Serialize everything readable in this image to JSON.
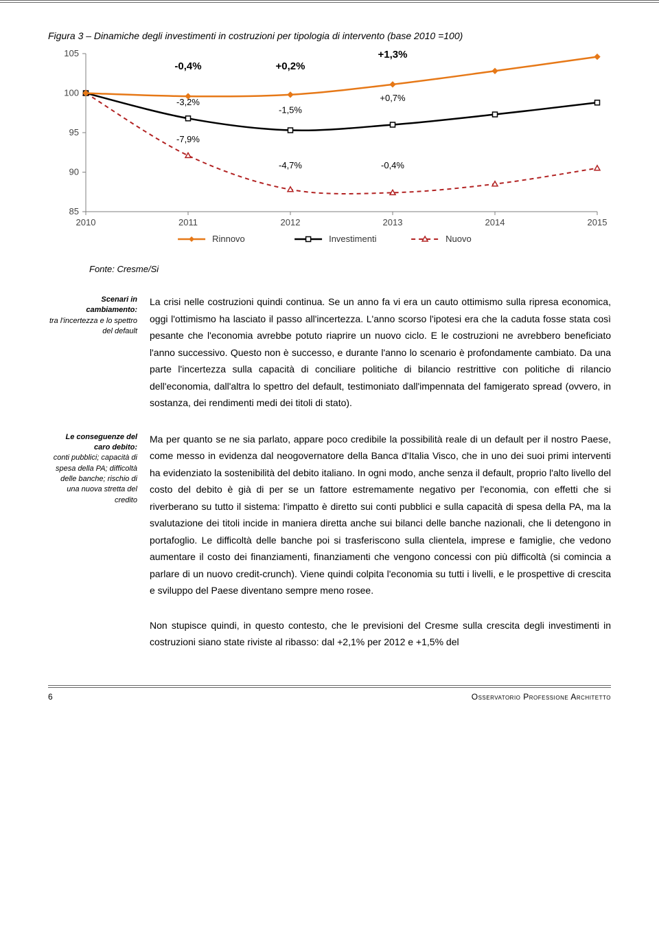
{
  "chart": {
    "title": "Figura 3 – Dinamiche degli investimenti in costruzioni per tipologia di intervento (base 2010 =100)",
    "x_labels": [
      "2010",
      "2011",
      "2012",
      "2013",
      "2014",
      "2015"
    ],
    "ylim": [
      85,
      105
    ],
    "ytick_step": 5,
    "y_labels": [
      "85",
      "90",
      "95",
      "100",
      "105"
    ],
    "series": {
      "rinnovo": {
        "label": "Rinnovo",
        "color": "#e67817",
        "marker": "diamond",
        "width": 2.5,
        "values": [
          100,
          99.6,
          99.8,
          101.1,
          102.8,
          104.6
        ]
      },
      "investimenti": {
        "label": "Investimenti",
        "color": "#000000",
        "marker": "square",
        "width": 2.5,
        "values": [
          100,
          96.8,
          95.3,
          96.0,
          97.3,
          98.8
        ]
      },
      "nuovo": {
        "label": "Nuovo",
        "color": "#b22222",
        "marker": "triangle",
        "width": 2,
        "dash": "6,5",
        "values": [
          100,
          92.1,
          87.8,
          87.4,
          88.5,
          90.5
        ]
      }
    },
    "annotations": [
      {
        "text": "-0,4%",
        "x": 1,
        "y_off": 103,
        "series": "top",
        "bold": true
      },
      {
        "text": "+0,2%",
        "x": 2,
        "y_off": 103,
        "series": "top",
        "bold": true
      },
      {
        "text": "+1,3%",
        "x": 3,
        "y_off": 104.5,
        "series": "top",
        "bold": true
      },
      {
        "text": "-3,2%",
        "x": 1,
        "y_off": 98.5,
        "series": "mid",
        "bold": false
      },
      {
        "text": "-1,5%",
        "x": 2,
        "y_off": 97.5,
        "series": "mid",
        "bold": false
      },
      {
        "text": "+0,7%",
        "x": 3,
        "y_off": 99,
        "series": "mid",
        "bold": false
      },
      {
        "text": "-7,9%",
        "x": 1,
        "y_off": 93.8,
        "series": "low",
        "bold": false
      },
      {
        "text": "-4,7%",
        "x": 2,
        "y_off": 90.5,
        "series": "low",
        "bold": false
      },
      {
        "text": "-0,4%",
        "x": 3,
        "y_off": 90.5,
        "series": "low",
        "bold": false
      }
    ],
    "axis_color": "#7f7f7f",
    "tick_color": "#7f7f7f",
    "label_fontsize": 13,
    "annot_fontsize": 13,
    "annot_bold_fontsize": 15,
    "background_color": "#ffffff",
    "legend_items": [
      "Rinnovo",
      "Investimenti",
      "Nuovo"
    ]
  },
  "source": "Fonte: Cresme/Si",
  "block1": {
    "sidenote_bold": "Scenari in cambiamento:",
    "sidenote_rest": "tra l'incertezza e lo spettro del default",
    "text": "La crisi nelle costruzioni quindi continua. Se un anno fa vi era un cauto ottimismo sulla ripresa economica, oggi l'ottimismo ha lasciato il passo all'incertezza. L'anno scorso l'ipotesi era che la caduta fosse stata così pesante che l'economia avrebbe potuto riaprire un nuovo ciclo. E le costruzioni ne avrebbero beneficiato l'anno successivo. Questo non è successo, e durante l'anno lo scenario è profondamente cambiato. Da una parte l'incertezza sulla capacità di conciliare politiche di bilancio restrittive con politiche di rilancio dell'economia, dall'altra lo spettro del default, testimoniato dall'impennata del famigerato spread (ovvero, in sostanza, dei rendimenti medi dei titoli di stato)."
  },
  "block2": {
    "sidenote_bold": "Le conseguenze del caro debito:",
    "sidenote_rest": "conti pubblici; capacità di spesa della PA; difficoltà delle banche; rischio di una nuova stretta del credito",
    "text": "Ma per quanto se ne sia parlato, appare poco credibile la possibilità reale di un default per il nostro Paese, come messo in evidenza dal neogovernatore della Banca d'Italia Visco, che in uno dei suoi primi interventi ha evidenziato la sostenibilità del debito italiano. In ogni modo, anche senza il default, proprio l'alto livello del costo del debito è già di per se un fattore estremamente negativo per l'economia, con effetti che si riverberano su tutto il sistema: l'impatto è diretto sui conti pubblici e sulla capacità di spesa della PA, ma la svalutazione dei titoli incide in maniera diretta anche sui bilanci delle banche nazionali, che li detengono in portafoglio. Le difficoltà delle banche poi si trasferiscono sulla clientela, imprese e famiglie, che vedono aumentare il costo dei finanziamenti, finanziamenti che vengono concessi con più difficoltà (si comincia a parlare di un nuovo credit-crunch). Viene quindi colpita l'economia su tutti i livelli, e le prospettive di crescita e sviluppo del Paese diventano sempre meno rosee."
  },
  "block3": {
    "text": "Non stupisce quindi, in questo contesto, che le previsioni del Cresme sulla crescita degli investimenti in costruzioni siano state riviste al ribasso: dal +2,1% per 2012 e +1,5% del"
  },
  "footer": {
    "page": "6",
    "right": "Osservatorio Professione Architetto"
  }
}
